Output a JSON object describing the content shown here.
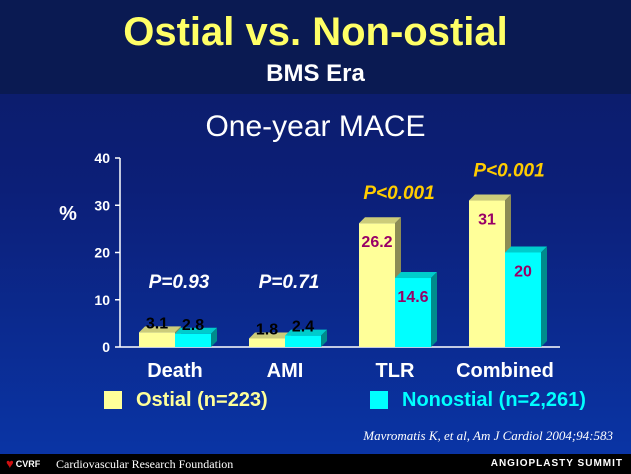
{
  "header": {
    "title": "Ostial vs. Non-ostial",
    "subtitle": "BMS Era"
  },
  "chart_data": {
    "type": "bar",
    "title": "One-year MACE",
    "ylabel": "%",
    "ylim": [
      0,
      40
    ],
    "yticks": [
      "0",
      "10",
      "20",
      "30",
      "40"
    ],
    "categories": [
      "Death",
      "AMI",
      "TLR",
      "Combined"
    ],
    "series": [
      {
        "name": "Ostial (n=223)",
        "values": [
          3.1,
          1.8,
          26.2,
          31
        ],
        "labels": [
          "3.1",
          "1.8",
          "26.2",
          "31"
        ],
        "color": "#ffff99"
      },
      {
        "name": "Nonostial (n=2,261)",
        "values": [
          2.8,
          2.4,
          14.6,
          20
        ],
        "labels": [
          "2.8",
          "2.4",
          "14.6",
          "20"
        ],
        "color": "#00ffff"
      }
    ],
    "annotations": [
      "P=0.93",
      "P=0.71",
      "P<0.001",
      "P<0.001"
    ],
    "annotation_colors": [
      "#ffffff",
      "#ffffff",
      "#ffcc00",
      "#ffcc00"
    ],
    "label_colors": {
      "dark": "#000000",
      "magenta": "#990066"
    }
  },
  "citation": "Mavromatis K, et al, Am J Cardiol 2004;94:583",
  "footer": {
    "logo_text": "CVRF",
    "organization": "Cardiovascular Research Foundation",
    "event": "ANGIOPLASTY SUMMIT"
  }
}
